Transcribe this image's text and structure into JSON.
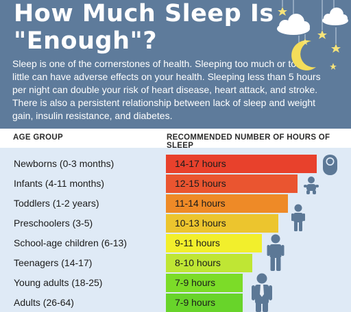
{
  "header": {
    "title_line1": "How Much Sleep Is",
    "title_line2": "\"Enough\"?",
    "intro": "Sleep is one of the cornerstones of health. Sleeping too much or too little can have adverse effects on your health. Sleeping less than 5 hours per night can double your risk of heart disease, heart attack, and stroke. There is also a persistent relationship between lack of sleep and weight gain, insulin resistance, and diabetes."
  },
  "table": {
    "col_age": "AGE GROUP",
    "col_hours": "RECOMMENDED NUMBER OF HOURS OF SLEEP",
    "rows": [
      {
        "age": "Newborns (0-3 months)",
        "hours": "14-17 hours",
        "color": "#e8412c"
      },
      {
        "age": "Infants (4-11 months)",
        "hours": "12-15 hours",
        "color": "#ea5530"
      },
      {
        "age": "Toddlers (1-2 years)",
        "hours": "11-14 hours",
        "color": "#ee8a27"
      },
      {
        "age": "Preschoolers (3-5)",
        "hours": "10-13 hours",
        "color": "#ecc52e"
      },
      {
        "age": "School-age children (6-13)",
        "hours": "9-11 hours",
        "color": "#f2ef2c"
      },
      {
        "age": "Teenagers (14-17)",
        "hours": "8-10 hours",
        "color": "#bfe634"
      },
      {
        "age": "Young adults (18-25)",
        "hours": "7-9 hours",
        "color": "#7cdc28"
      },
      {
        "age": "Adults (26-64)",
        "hours": "7-9 hours",
        "color": "#68d42a"
      }
    ]
  },
  "colors": {
    "header_bg": "#5e7b9b",
    "body_bg": "#dfeaf6",
    "figure": "#5c7896",
    "moon": "#f4dd5a",
    "star": "#f6e37a",
    "cloud": "#ffffff"
  },
  "icons": [
    "cloud-icon",
    "moon-icon",
    "star-icon",
    "baby-icon",
    "person-icon"
  ]
}
